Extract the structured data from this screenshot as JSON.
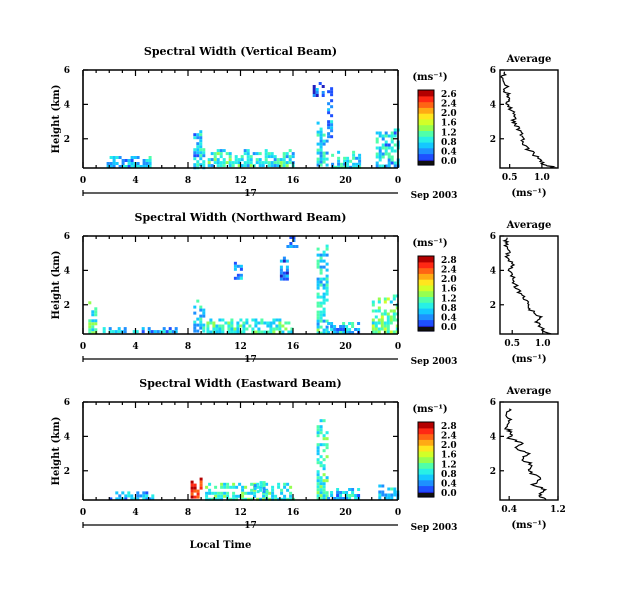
{
  "figure": {
    "date_label": "Sep 2003",
    "xlabel": "Local Time",
    "day_label": "17",
    "colorbar_unit": "(ms⁻¹)",
    "avg_title": "Average",
    "avg_xlabel": "(ms⁻¹)",
    "colormap": [
      "#101010",
      "#2020c0",
      "#1e50ff",
      "#1e90ff",
      "#14c8ff",
      "#28f0e6",
      "#50ffaa",
      "#96ff50",
      "#d2ff28",
      "#ffe61e",
      "#ffaa14",
      "#ff6414",
      "#ff2814",
      "#b40000"
    ],
    "ylabel": "Height (km)"
  },
  "chart_data": [
    {
      "type": "heatmap",
      "title": "Spectral Width (Vertical Beam)",
      "ylabel": "Height (km)",
      "x_ticks": [
        "0",
        "4",
        "8",
        "12",
        "16",
        "20",
        "0"
      ],
      "y_ticks": [
        "2",
        "4",
        "6"
      ],
      "ylim": [
        0.3,
        6
      ],
      "colorbar": {
        "min": 0.0,
        "max": 2.6,
        "ticks": [
          "2.6",
          "2.4",
          "2.0",
          "1.6",
          "1.2",
          "0.8",
          "0.4",
          "0.0"
        ]
      },
      "echoes": [
        {
          "t0": 1.8,
          "t1": 5.2,
          "h0": 0.4,
          "h1": 1.0,
          "v": 0.6
        },
        {
          "t0": 8.4,
          "t1": 9.2,
          "h0": 0.4,
          "h1": 2.5,
          "v": 0.7
        },
        {
          "t0": 9.5,
          "t1": 16.0,
          "h0": 0.4,
          "h1": 1.4,
          "v": 0.9
        },
        {
          "t0": 17.5,
          "t1": 18.2,
          "h0": 4.5,
          "h1": 5.3,
          "v": 0.3
        },
        {
          "t0": 17.8,
          "t1": 18.5,
          "h0": 0.4,
          "h1": 3.0,
          "v": 0.8
        },
        {
          "t0": 18.6,
          "t1": 19.0,
          "h0": 2.2,
          "h1": 5.0,
          "v": 0.5
        },
        {
          "t0": 18.9,
          "t1": 21.0,
          "h0": 0.4,
          "h1": 1.3,
          "v": 0.8
        },
        {
          "t0": 22.3,
          "t1": 24.0,
          "h0": 0.4,
          "h1": 2.6,
          "v": 0.7
        }
      ],
      "avg": {
        "xlim": [
          0.35,
          1.25
        ],
        "x_ticks": [
          "0.5",
          "1.0"
        ],
        "y_ticks": [
          "2",
          "4",
          "6"
        ],
        "profile": [
          [
            1.2,
            0.3
          ],
          [
            1.05,
            0.5
          ],
          [
            0.95,
            0.8
          ],
          [
            0.85,
            1.2
          ],
          [
            0.75,
            1.5
          ],
          [
            0.7,
            1.9
          ],
          [
            0.68,
            2.3
          ],
          [
            0.62,
            2.7
          ],
          [
            0.55,
            3.0
          ],
          [
            0.58,
            3.4
          ],
          [
            0.5,
            3.8
          ],
          [
            0.47,
            4.2
          ],
          [
            0.5,
            4.5
          ],
          [
            0.43,
            4.8
          ],
          [
            0.45,
            5.2
          ],
          [
            0.4,
            5.6
          ],
          [
            0.42,
            5.9
          ]
        ]
      }
    },
    {
      "type": "heatmap",
      "title": "Spectral Width (Northward Beam)",
      "ylabel": "Height (km)",
      "x_ticks": [
        "0",
        "4",
        "8",
        "12",
        "16",
        "20",
        "0"
      ],
      "y_ticks": [
        "2",
        "4",
        "6"
      ],
      "ylim": [
        0.3,
        6
      ],
      "colorbar": {
        "min": 0.0,
        "max": 2.8,
        "ticks": [
          "2.8",
          "2.4",
          "2.0",
          "1.6",
          "1.2",
          "0.8",
          "0.4",
          "0.0"
        ]
      },
      "echoes": [
        {
          "t0": 0.4,
          "t1": 1.0,
          "h0": 0.4,
          "h1": 2.2,
          "v": 1.1
        },
        {
          "t0": 1.5,
          "t1": 7.0,
          "h0": 0.4,
          "h1": 0.7,
          "v": 0.6
        },
        {
          "t0": 8.4,
          "t1": 9.2,
          "h0": 0.4,
          "h1": 2.3,
          "v": 0.8
        },
        {
          "t0": 9.4,
          "t1": 16.0,
          "h0": 0.4,
          "h1": 1.2,
          "v": 1.0
        },
        {
          "t0": 11.5,
          "t1": 12.0,
          "h0": 3.5,
          "h1": 4.5,
          "v": 0.5
        },
        {
          "t0": 15.0,
          "t1": 15.5,
          "h0": 3.5,
          "h1": 4.8,
          "v": 0.4
        },
        {
          "t0": 15.5,
          "t1": 16.2,
          "h0": 5.4,
          "h1": 6.0,
          "v": 0.3
        },
        {
          "t0": 17.8,
          "t1": 18.5,
          "h0": 0.4,
          "h1": 5.5,
          "v": 0.9
        },
        {
          "t0": 18.6,
          "t1": 21.0,
          "h0": 0.4,
          "h1": 1.0,
          "v": 0.7
        },
        {
          "t0": 22.0,
          "t1": 24.0,
          "h0": 0.4,
          "h1": 2.6,
          "v": 1.2
        }
      ],
      "avg": {
        "xlim": [
          0.3,
          1.25
        ],
        "x_ticks": [
          "0.5",
          "1.0"
        ],
        "y_ticks": [
          "2",
          "4",
          "6"
        ],
        "profile": [
          [
            1.1,
            0.3
          ],
          [
            1.0,
            0.6
          ],
          [
            0.9,
            1.0
          ],
          [
            0.95,
            1.3
          ],
          [
            0.8,
            1.7
          ],
          [
            0.75,
            2.0
          ],
          [
            0.7,
            2.4
          ],
          [
            0.6,
            2.8
          ],
          [
            0.55,
            3.2
          ],
          [
            0.5,
            3.6
          ],
          [
            0.45,
            4.0
          ],
          [
            0.5,
            4.4
          ],
          [
            0.4,
            4.8
          ],
          [
            0.45,
            5.2
          ],
          [
            0.38,
            5.6
          ],
          [
            0.42,
            5.9
          ]
        ]
      }
    },
    {
      "type": "heatmap",
      "title": "Spectral Width (Eastward Beam)",
      "ylabel": "Height (km)",
      "x_ticks": [
        "0",
        "4",
        "8",
        "12",
        "16",
        "20",
        "0"
      ],
      "y_ticks": [
        "2",
        "4",
        "6"
      ],
      "ylim": [
        0.3,
        6
      ],
      "colorbar": {
        "min": 0.0,
        "max": 2.8,
        "ticks": [
          "2.8",
          "2.4",
          "2.0",
          "1.6",
          "1.2",
          "0.8",
          "0.4",
          "0.0"
        ]
      },
      "echoes": [
        {
          "t0": 2.0,
          "t1": 5.5,
          "h0": 0.4,
          "h1": 0.8,
          "v": 0.6
        },
        {
          "t0": 8.2,
          "t1": 9.0,
          "h0": 0.4,
          "h1": 1.6,
          "v": 2.6
        },
        {
          "t0": 9.3,
          "t1": 16.0,
          "h0": 0.4,
          "h1": 1.3,
          "v": 1.0
        },
        {
          "t0": 13.0,
          "t1": 14.0,
          "h0": 0.8,
          "h1": 1.4,
          "v": 0.9
        },
        {
          "t0": 17.8,
          "t1": 18.5,
          "h0": 0.4,
          "h1": 5.0,
          "v": 1.0
        },
        {
          "t0": 18.6,
          "t1": 21.0,
          "h0": 0.4,
          "h1": 1.0,
          "v": 0.7
        },
        {
          "t0": 22.5,
          "t1": 24.0,
          "h0": 0.4,
          "h1": 1.2,
          "v": 0.8
        }
      ],
      "avg": {
        "xlim": [
          0.25,
          1.2
        ],
        "x_ticks": [
          "0.4",
          "1.2"
        ],
        "y_ticks": [
          "2",
          "4",
          "6"
        ],
        "profile": [
          [
            1.0,
            0.3
          ],
          [
            0.9,
            0.6
          ],
          [
            1.0,
            0.9
          ],
          [
            0.8,
            1.2
          ],
          [
            0.9,
            1.6
          ],
          [
            0.7,
            2.0
          ],
          [
            0.8,
            2.3
          ],
          [
            0.6,
            2.7
          ],
          [
            0.75,
            3.0
          ],
          [
            0.5,
            3.3
          ],
          [
            0.6,
            3.6
          ],
          [
            0.4,
            3.9
          ],
          [
            0.45,
            4.2
          ],
          [
            0.35,
            4.5
          ],
          [
            0.4,
            4.9
          ],
          [
            0.38,
            5.3
          ],
          [
            0.4,
            5.6
          ]
        ]
      }
    }
  ]
}
